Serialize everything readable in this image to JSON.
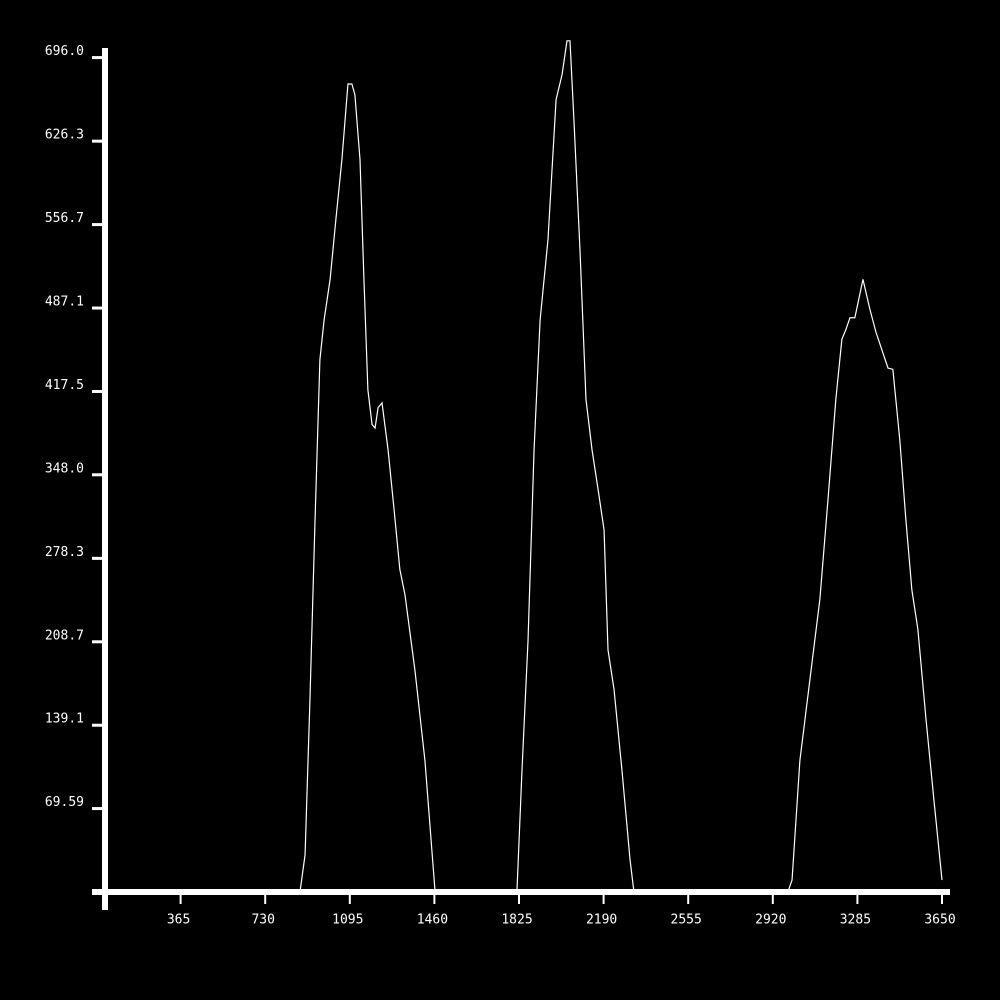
{
  "chart_data": {
    "type": "line",
    "color": "#ffffff",
    "x": [
      0,
      880,
      902,
      923,
      945,
      966,
      984,
      1010,
      1035,
      1061,
      1087,
      1104,
      1117,
      1139,
      1156,
      1173,
      1191,
      1204,
      1217,
      1234,
      1260,
      1286,
      1311,
      1333,
      1376,
      1419,
      1463,
      1816,
      1838,
      1864,
      1890,
      1916,
      1950,
      1985,
      2011,
      2032,
      2045,
      2062,
      2088,
      2114,
      2140,
      2166,
      2192,
      2209,
      2235,
      2269,
      2304,
      2321,
      2985,
      3003,
      3037,
      3080,
      3123,
      3158,
      3192,
      3218,
      3235,
      3253,
      3274,
      3309,
      3339,
      3365,
      3391,
      3417,
      3438,
      3468,
      3494,
      3520,
      3546,
      3581,
      3615,
      3650
    ],
    "values": [
      0,
      0,
      31,
      160,
      310,
      444,
      477,
      511,
      561,
      611,
      674,
      674,
      665,
      611,
      511,
      419,
      390,
      387,
      404,
      408,
      369,
      319,
      269,
      248,
      185,
      110,
      0,
      0,
      102,
      210,
      369,
      477,
      544,
      661,
      682,
      710,
      710,
      644,
      536,
      411,
      369,
      336,
      302,
      202,
      169,
      102,
      27,
      0,
      0,
      10,
      110,
      177,
      244,
      327,
      411,
      461,
      469,
      479,
      479,
      511,
      486,
      467,
      452,
      437,
      436,
      377,
      311,
      252,
      219,
      144,
      77,
      10
    ],
    "xlim": [
      0,
      3650
    ],
    "xticks": [
      365,
      730,
      1095,
      1460,
      1825,
      2190,
      2555,
      2920,
      3285,
      3650
    ],
    "ylim": [
      0,
      704
    ],
    "yticks": [
      69.59,
      139.1,
      208.7,
      278.3,
      {
        "value": 348,
        "label": "348.0"
      },
      417.5,
      487.1,
      556.7,
      626.3,
      {
        "value": 696,
        "label": "696.0"
      }
    ]
  }
}
